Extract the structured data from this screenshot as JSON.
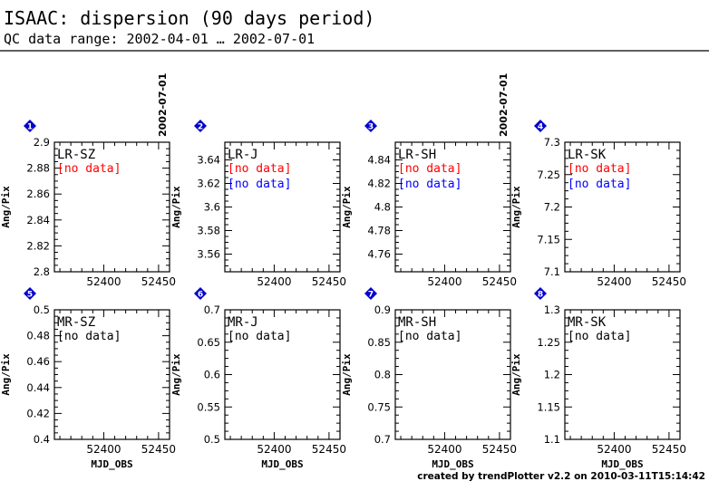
{
  "header": {
    "title": "ISAAC: dispersion (90 days period)",
    "subtitle": "QC data range: 2002-04-01 … 2002-07-01"
  },
  "footer": {
    "credit": "created by trendPlotter v2.2 on 2010-03-11T15:14:42"
  },
  "colors": {
    "marker": "#0000cc",
    "no_data_red": "#ff0000",
    "no_data_blue": "#0000ff",
    "text": "#000000"
  },
  "chart_data": [
    {
      "index": "1",
      "type": "scatter",
      "label": "LR-SZ",
      "ylabel": "Ang/Pix",
      "xlabel": "",
      "ylim": [
        2.8,
        2.9
      ],
      "yticks": [
        "2.8",
        "2.82",
        "2.84",
        "2.86",
        "2.88",
        "2.9"
      ],
      "xticks": [
        "52400",
        "52450"
      ],
      "xlim": [
        52355,
        52460
      ],
      "date_marker": "2002-07-01",
      "notes": [
        {
          "text": "[no data]",
          "color": "red"
        }
      ],
      "points": []
    },
    {
      "index": "2",
      "type": "scatter",
      "label": "LR-J",
      "ylabel": "Ang/Pix",
      "xlabel": "",
      "ylim": [
        3.545,
        3.655
      ],
      "yticks": [
        "3.56",
        "3.58",
        "3.6",
        "3.62",
        "3.64"
      ],
      "xticks": [
        "52400",
        "52450"
      ],
      "xlim": [
        52355,
        52460
      ],
      "notes": [
        {
          "text": "[no data]",
          "color": "red"
        },
        {
          "text": "[no data]",
          "color": "blue"
        }
      ],
      "points": []
    },
    {
      "index": "3",
      "type": "scatter",
      "label": "LR-SH",
      "ylabel": "Ang/Pix",
      "xlabel": "",
      "ylim": [
        4.745,
        4.855
      ],
      "yticks": [
        "4.76",
        "4.78",
        "4.8",
        "4.82",
        "4.84"
      ],
      "xticks": [
        "52400",
        "52450"
      ],
      "xlim": [
        52355,
        52460
      ],
      "date_marker": "2002-07-01",
      "notes": [
        {
          "text": "[no data]",
          "color": "red"
        },
        {
          "text": "[no data]",
          "color": "blue"
        }
      ],
      "points": []
    },
    {
      "index": "4",
      "type": "scatter",
      "label": "LR-SK",
      "ylabel": "Ang/Pix",
      "xlabel": "",
      "ylim": [
        7.1,
        7.3
      ],
      "yticks": [
        "7.1",
        "7.15",
        "7.2",
        "7.25",
        "7.3"
      ],
      "xticks": [
        "52400",
        "52450"
      ],
      "xlim": [
        52355,
        52460
      ],
      "notes": [
        {
          "text": "[no data]",
          "color": "red"
        },
        {
          "text": "[no data]",
          "color": "blue"
        }
      ],
      "points": []
    },
    {
      "index": "5",
      "type": "scatter",
      "label": "MR-SZ",
      "ylabel": "Ang/Pix",
      "xlabel": "MJD_OBS",
      "ylim": [
        0.4,
        0.5
      ],
      "yticks": [
        "0.4",
        "0.42",
        "0.44",
        "0.46",
        "0.48",
        "0.5"
      ],
      "xticks": [
        "52400",
        "52450"
      ],
      "xlim": [
        52355,
        52460
      ],
      "notes": [
        {
          "text": "[no data]",
          "color": "black"
        }
      ],
      "points": []
    },
    {
      "index": "6",
      "type": "scatter",
      "label": "MR-J",
      "ylabel": "Ang/Pix",
      "xlabel": "MJD_OBS",
      "ylim": [
        0.5,
        0.7
      ],
      "yticks": [
        "0.5",
        "0.55",
        "0.6",
        "0.65",
        "0.7"
      ],
      "xticks": [
        "52400",
        "52450"
      ],
      "xlim": [
        52355,
        52460
      ],
      "notes": [
        {
          "text": "[no data]",
          "color": "black"
        }
      ],
      "points": []
    },
    {
      "index": "7",
      "type": "scatter",
      "label": "MR-SH",
      "ylabel": "Ang/Pix",
      "xlabel": "MJD_OBS",
      "ylim": [
        0.7,
        0.9
      ],
      "yticks": [
        "0.7",
        "0.75",
        "0.8",
        "0.85",
        "0.9"
      ],
      "xticks": [
        "52400",
        "52450"
      ],
      "xlim": [
        52355,
        52460
      ],
      "notes": [
        {
          "text": "[no data]",
          "color": "black"
        }
      ],
      "points": []
    },
    {
      "index": "8",
      "type": "scatter",
      "label": "MR-SK",
      "ylabel": "Ang/Pix",
      "xlabel": "MJD_OBS",
      "ylim": [
        1.1,
        1.3
      ],
      "yticks": [
        "1.1",
        "1.15",
        "1.2",
        "1.25",
        "1.3"
      ],
      "xticks": [
        "52400",
        "52450"
      ],
      "xlim": [
        52355,
        52460
      ],
      "notes": [
        {
          "text": "[no data]",
          "color": "black"
        }
      ],
      "points": []
    }
  ]
}
